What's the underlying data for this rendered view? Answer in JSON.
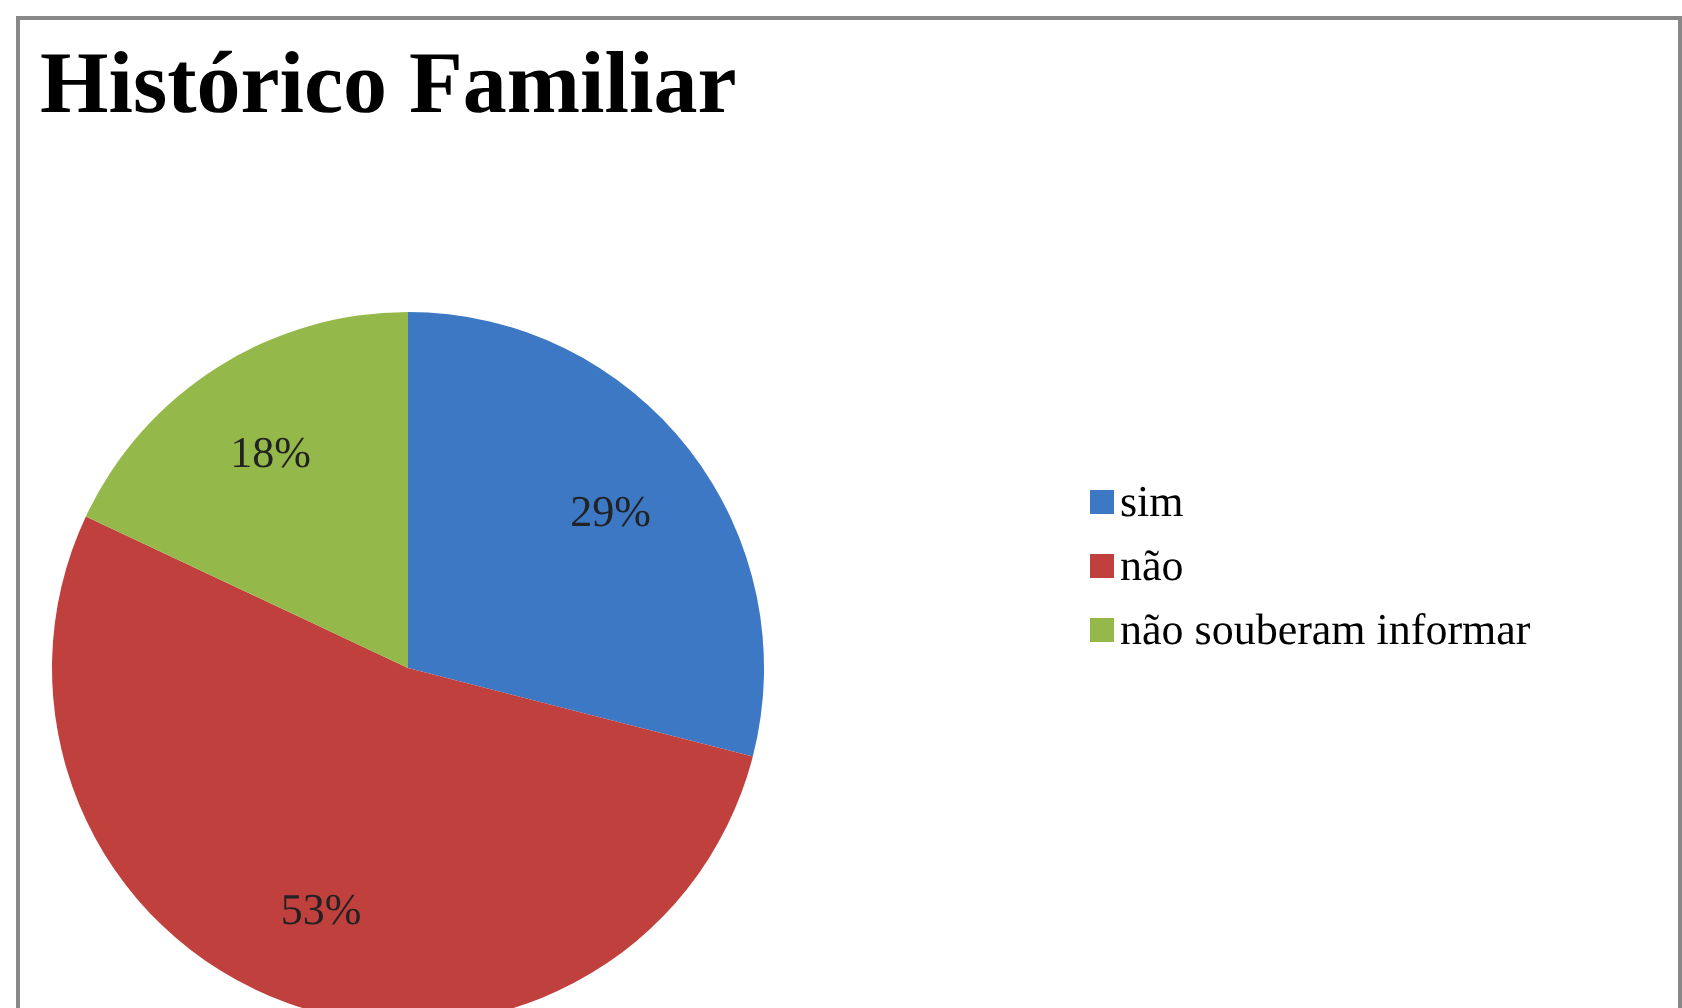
{
  "chart_data": {
    "type": "pie",
    "title": "Histórico Familiar",
    "categories": [
      "sim",
      "não",
      "não souberam informar"
    ],
    "values": [
      29,
      53,
      18
    ],
    "colors": [
      "#3c78c4",
      "#c0403d",
      "#94b84a"
    ],
    "value_labels": [
      "29%",
      "53%",
      "18%"
    ],
    "legend": "right"
  }
}
